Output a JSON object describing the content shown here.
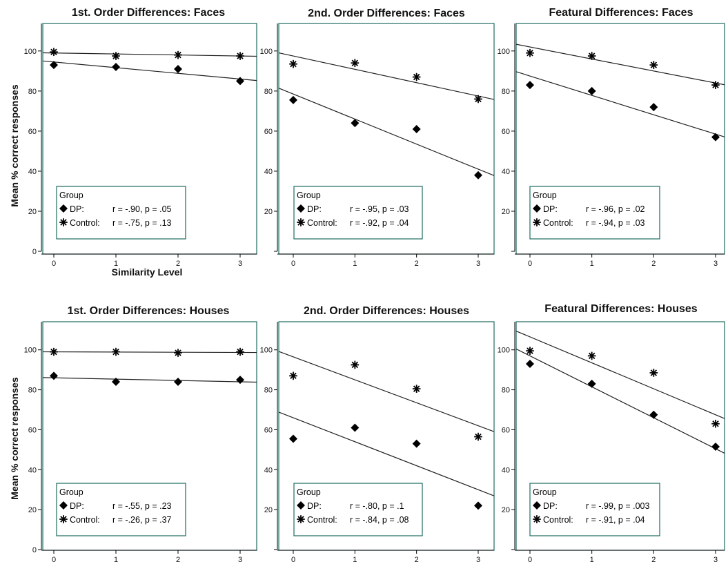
{
  "colors": {
    "plot_frame": "#1d6b60",
    "legend_frame": "#1d6b60",
    "line": "#222222",
    "marker": "#000000"
  },
  "legend_title": "Group",
  "series_labels": [
    "DP:",
    "Control:"
  ],
  "markers": {
    "DP": "diamond",
    "Control": "asterisk"
  },
  "y_axis_title": "Mean % correct responses",
  "x_axis_title": "Similarity Level",
  "chart_data": [
    {
      "type": "scatter",
      "title": "1st. Order Differences: Faces",
      "x": [
        0,
        1,
        2,
        3
      ],
      "ylim": [
        0,
        112
      ],
      "y_ticks": [
        "0",
        "20",
        "40",
        "60",
        "80",
        "100"
      ],
      "x_ticks": [
        "0",
        "1",
        "2",
        "3"
      ],
      "series": [
        {
          "name": "DP:",
          "values": [
            93,
            92,
            91,
            85
          ],
          "fit": [
            94.5,
            86
          ],
          "stats": "r = -.90, p = .05"
        },
        {
          "name": "Control:",
          "values": [
            99.5,
            97.5,
            98,
            97.5
          ],
          "fit": [
            99,
            97.5
          ],
          "stats": "r = -.75, p = .13"
        }
      ]
    },
    {
      "type": "scatter",
      "title": "2nd. Order Differences: Faces",
      "x": [
        0,
        1,
        2,
        3
      ],
      "ylim": [
        0,
        112
      ],
      "y_ticks": [
        "",
        "20",
        "40",
        "60",
        "80",
        "100"
      ],
      "x_ticks": [
        "0",
        "1",
        "2",
        "3"
      ],
      "series": [
        {
          "name": "DP:",
          "values": [
            75.5,
            64,
            61,
            38
          ],
          "fit": [
            78.5,
            41
          ],
          "stats": "r = -.95, p = .03"
        },
        {
          "name": "Control:",
          "values": [
            93.5,
            94,
            87,
            76
          ],
          "fit": [
            97.5,
            77.5
          ],
          "stats": "r = -.92, p = .04"
        }
      ]
    },
    {
      "type": "scatter",
      "title": "Featural Differences: Faces",
      "x": [
        0,
        1,
        2,
        3
      ],
      "ylim": [
        0,
        112
      ],
      "y_ticks": [
        "",
        "20",
        "40",
        "60",
        "80",
        "100"
      ],
      "x_ticks": [
        "0",
        "1",
        "2",
        "3"
      ],
      "series": [
        {
          "name": "DP:",
          "values": [
            83,
            80,
            72,
            57
          ],
          "fit": [
            87.5,
            58.5
          ],
          "stats": "r = -.96, p = .02"
        },
        {
          "name": "Control:",
          "values": [
            99,
            97.5,
            93,
            83
          ],
          "fit": [
            102,
            84
          ],
          "stats": "r = -.94, p = .03"
        }
      ]
    },
    {
      "type": "scatter",
      "title": "1st. Order Differences: Houses",
      "x": [
        0,
        1,
        2,
        3
      ],
      "ylim": [
        0,
        112
      ],
      "y_ticks": [
        "0",
        "20",
        "40",
        "60",
        "80",
        "100"
      ],
      "x_ticks": [
        "0",
        "1",
        "2",
        "3"
      ],
      "series": [
        {
          "name": "DP:",
          "values": [
            87,
            84,
            84,
            85
          ],
          "fit": [
            86,
            84
          ],
          "stats": "r = -.55, p = .23"
        },
        {
          "name": "Control:",
          "values": [
            99,
            99,
            98.5,
            99
          ],
          "fit": [
            99,
            98.7
          ],
          "stats": "r = -.26, p = .37"
        }
      ]
    },
    {
      "type": "scatter",
      "title": "2nd. Order Differences: Houses",
      "x": [
        0,
        1,
        2,
        3
      ],
      "ylim": [
        0,
        112
      ],
      "y_ticks": [
        "",
        "20",
        "40",
        "60",
        "80",
        "100"
      ],
      "x_ticks": [
        "0",
        "1",
        "2",
        "3"
      ],
      "series": [
        {
          "name": "DP:",
          "values": [
            55.5,
            61,
            53,
            22
          ],
          "fit": [
            66,
            30
          ],
          "stats": "r = -.80, p = .1"
        },
        {
          "name": "Control:",
          "values": [
            87,
            92.5,
            80.5,
            56.5
          ],
          "fit": [
            96.5,
            62
          ],
          "stats": "r = -.84, p = .08"
        }
      ]
    },
    {
      "type": "scatter",
      "title": "Featural Differences: Houses",
      "x": [
        0,
        1,
        2,
        3
      ],
      "ylim": [
        0,
        112
      ],
      "y_ticks": [
        "",
        "20",
        "40",
        "60",
        "80",
        "100"
      ],
      "x_ticks": [
        "0",
        "1",
        "2",
        "3"
      ],
      "series": [
        {
          "name": "DP:",
          "values": [
            93,
            83,
            67.5,
            51.5
          ],
          "fit": [
            97,
            50.5
          ],
          "stats": "r = -.99, p = .003"
        },
        {
          "name": "Control:",
          "values": [
            99.5,
            97,
            88.5,
            63
          ],
          "fit": [
            106.5,
            67.5
          ],
          "stats": "r = -.91, p = .04"
        }
      ]
    }
  ]
}
